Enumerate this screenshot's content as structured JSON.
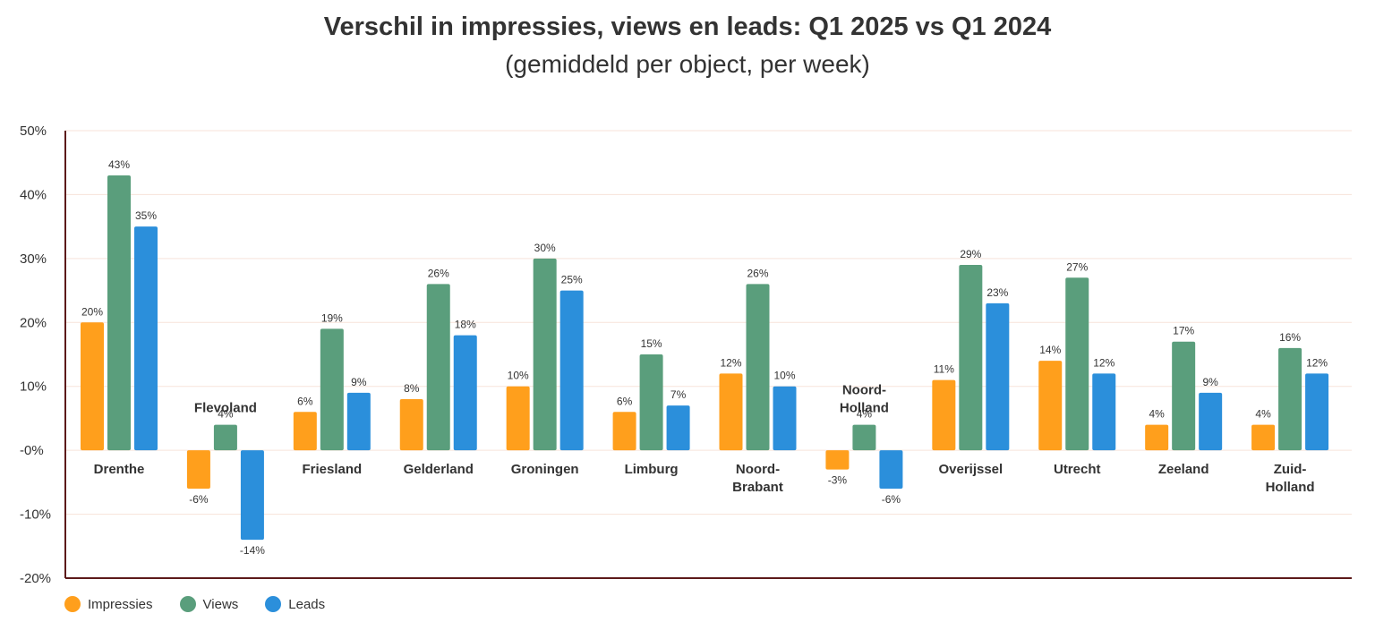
{
  "chart_data": {
    "type": "bar",
    "title": "Verschil in impressies, views en leads: Q1 2025 vs Q1 2024",
    "subtitle": "(gemiddeld per object, per week)",
    "xlabel": "",
    "ylabel": "",
    "ylim": [
      -20,
      50
    ],
    "yticks": [
      50,
      40,
      30,
      20,
      10,
      0,
      -10,
      -20
    ],
    "ytick_labels": [
      "50%",
      "40%",
      "30%",
      "20%",
      "10%",
      "-0%",
      "-10%",
      "-20%"
    ],
    "grid": true,
    "legend_position": "bottom-left",
    "categories": [
      [
        "Drenthe"
      ],
      [
        "Flevoland"
      ],
      [
        "Friesland"
      ],
      [
        "Gelderland"
      ],
      [
        "Groningen"
      ],
      [
        "Limburg"
      ],
      [
        "Noord-",
        "Brabant"
      ],
      [
        "Noord-",
        "Holland"
      ],
      [
        "Overijssel"
      ],
      [
        "Utrecht"
      ],
      [
        "Zeeland"
      ],
      [
        "Zuid-",
        "Holland"
      ]
    ],
    "series": [
      {
        "name": "Impressies",
        "color": "#FF9F1C",
        "values": [
          20,
          -6,
          6,
          8,
          10,
          6,
          12,
          -3,
          11,
          14,
          4,
          4
        ]
      },
      {
        "name": "Views",
        "color": "#5A9E7C",
        "values": [
          43,
          4,
          19,
          26,
          30,
          15,
          26,
          4,
          29,
          27,
          17,
          16
        ]
      },
      {
        "name": "Leads",
        "color": "#2B8FDB",
        "values": [
          35,
          -14,
          9,
          18,
          25,
          7,
          10,
          -6,
          23,
          12,
          9,
          12
        ]
      }
    ]
  },
  "colors": {
    "axis": "#5C1A1A",
    "grid": "#F7E3DA",
    "text": "#333333"
  }
}
